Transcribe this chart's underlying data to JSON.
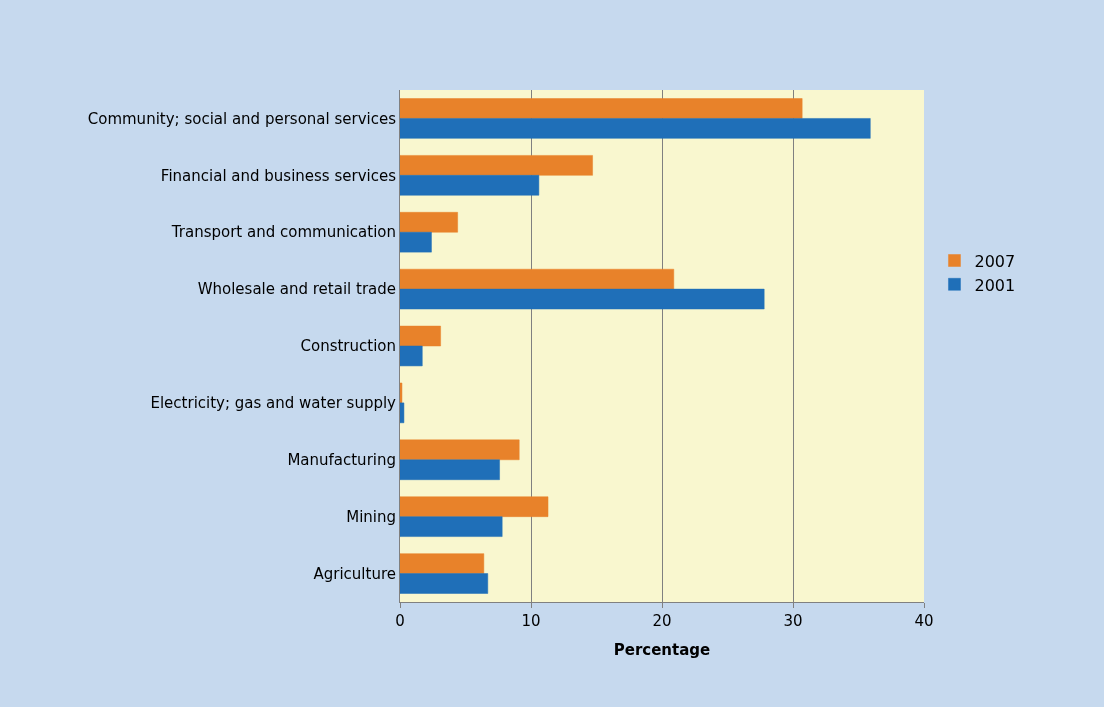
{
  "chart_data": {
    "type": "bar",
    "orientation": "horizontal",
    "xlabel": "Percentage",
    "categories": [
      "Community; social and personal services",
      "Financial and business services",
      "Transport and communication",
      "Wholesale and retail trade",
      "Construction",
      "Electricity; gas and water supply",
      "Manufacturing",
      "Mining",
      "Agriculture"
    ],
    "series": [
      {
        "name": "2007",
        "color": "#e8822a",
        "values": [
          30.7,
          14.7,
          4.4,
          20.9,
          3.1,
          0.15,
          9.1,
          11.3,
          6.4
        ]
      },
      {
        "name": "2001",
        "color": "#1f6fb8",
        "values": [
          35.9,
          10.6,
          2.4,
          27.8,
          1.7,
          0.3,
          7.6,
          7.8,
          6.7
        ]
      }
    ],
    "xlim": [
      0,
      40
    ],
    "xticks": [
      0,
      10,
      20,
      30,
      40
    ],
    "grid": "x",
    "legend": "right"
  }
}
